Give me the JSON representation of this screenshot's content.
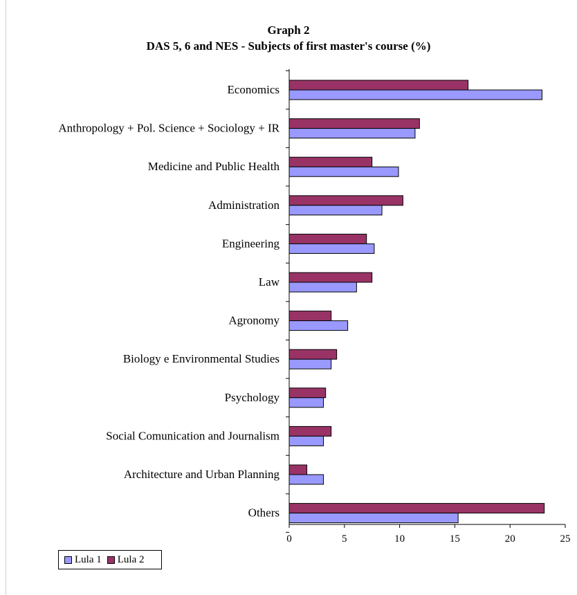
{
  "chart_data": {
    "type": "bar",
    "orientation": "horizontal",
    "title": "Graph 2",
    "subtitle": "DAS 5, 6 and NES - Subjects of first master's course (%)",
    "categories": [
      "Economics",
      "Anthropology + Pol. Science + Sociology + IR",
      "Medicine and Public Health",
      "Administration",
      "Engineering",
      "Law",
      "Agronomy",
      "Biology e Environmental Studies",
      "Psychology",
      "Social Comunication and Journalism",
      "Architecture and Urban Planning",
      "Others"
    ],
    "series": [
      {
        "name": "Lula 1",
        "color": "#9999ff",
        "values": [
          22.9,
          11.4,
          9.9,
          8.4,
          7.7,
          6.1,
          5.3,
          3.8,
          3.1,
          3.1,
          3.1,
          15.3
        ]
      },
      {
        "name": "Lula 2",
        "color": "#993366",
        "values": [
          16.2,
          11.8,
          7.5,
          10.3,
          7.0,
          7.5,
          3.8,
          4.3,
          3.3,
          3.8,
          1.6,
          23.1
        ]
      }
    ],
    "xlim": [
      0,
      25
    ],
    "xticks": [
      0,
      5,
      10,
      15,
      20,
      25
    ],
    "grid": false,
    "legend_position": "bottom-left"
  }
}
